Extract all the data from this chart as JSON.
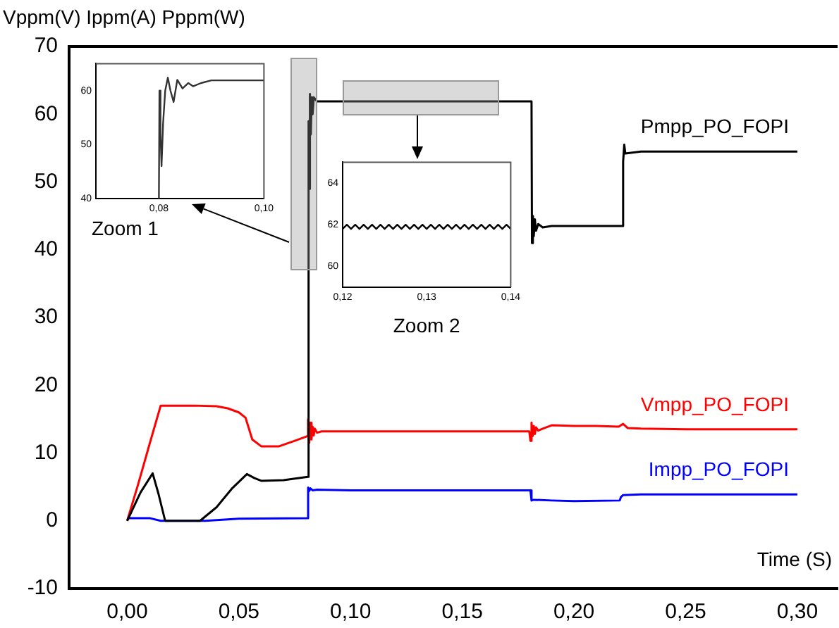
{
  "chart_data": [
    {
      "type": "line",
      "ylabel": "Vppm(V) Ippm(A) Pppm(W)",
      "xlabel": "Time (S)",
      "xlim": [
        -0.026,
        0.318
      ],
      "ylim": [
        -10,
        70
      ],
      "xticks": [
        {
          "value": 0,
          "label": "0,00"
        },
        {
          "value": 0.05,
          "label": "0,05"
        },
        {
          "value": 0.1,
          "label": "0,10"
        },
        {
          "value": 0.15,
          "label": "0,15"
        },
        {
          "value": 0.2,
          "label": "0,20"
        },
        {
          "value": 0.25,
          "label": "0,25"
        },
        {
          "value": 0.3,
          "label": "0,30"
        }
      ],
      "yticks": [
        -10,
        0,
        10,
        20,
        30,
        40,
        50,
        60,
        70
      ],
      "grid": false,
      "legend": false,
      "marker": "none",
      "line_style": "solid",
      "series": [
        {
          "name": "Pmpp_PO_FOPI",
          "color": "#000000",
          "x": [
            0,
            0.006,
            0.0114,
            0.014,
            0.017,
            0.0326,
            0.04,
            0.047,
            0.0536,
            0.057,
            0.06,
            0.07,
            0.0809,
            0.0812,
            0.0815,
            0.0818,
            0.0822,
            0.0826,
            0.083,
            0.0835,
            0.085,
            0.09,
            0.1,
            0.12,
            0.14,
            0.16,
            0.181,
            0.1812,
            0.1816,
            0.182,
            0.1825,
            0.183,
            0.184,
            0.186,
            0.19,
            0.2,
            0.21,
            0.2215,
            0.222,
            0.2225,
            0.223,
            0.23,
            0.25,
            0.27,
            0.3
          ],
          "values": [
            0,
            4.2,
            7.0,
            4,
            0,
            0,
            2,
            4.8,
            6.9,
            6.3,
            5.9,
            6.0,
            6.5,
            59,
            49,
            63,
            57,
            62.5,
            60,
            62.5,
            61.9,
            61.9,
            61.9,
            61.9,
            61.9,
            61.9,
            61.9,
            41,
            45,
            42,
            44.5,
            42.8,
            43.8,
            43.3,
            43.5,
            43.5,
            43.5,
            43.5,
            53,
            55.5,
            54.2,
            54.5,
            54.5,
            54.5,
            54.5
          ]
        },
        {
          "name": "Vmpp_PO_FOPI",
          "color": "#ff0000",
          "x": [
            0,
            0.005,
            0.01,
            0.015,
            0.02,
            0.03,
            0.04,
            0.045,
            0.05,
            0.053,
            0.056,
            0.06,
            0.068,
            0.075,
            0.0808,
            0.081,
            0.0815,
            0.082,
            0.0825,
            0.083,
            0.0835,
            0.084,
            0.085,
            0.087,
            0.09,
            0.12,
            0.15,
            0.18,
            0.1805,
            0.181,
            0.1815,
            0.182,
            0.1825,
            0.183,
            0.184,
            0.186,
            0.19,
            0.2,
            0.21,
            0.22,
            0.222,
            0.224,
            0.23,
            0.25,
            0.27,
            0.3
          ],
          "values": [
            0,
            5.5,
            11.3,
            17,
            17,
            17,
            16.9,
            16.6,
            16,
            15.2,
            12,
            11,
            11,
            11.8,
            12.5,
            15,
            11.5,
            14.5,
            12,
            13.9,
            12.6,
            13.6,
            13,
            13.2,
            13.2,
            13.2,
            13.2,
            13.2,
            11.8,
            14.5,
            12.5,
            14,
            12.8,
            13.8,
            13.3,
            13.6,
            14.1,
            14,
            14,
            13.9,
            14.3,
            13.7,
            13.6,
            13.5,
            13.5,
            13.5
          ]
        },
        {
          "name": "Impp_PO_FOPI",
          "color": "#0000ff",
          "x": [
            0,
            0.01,
            0.015,
            0.02,
            0.035,
            0.05,
            0.0808,
            0.081,
            0.0815,
            0.082,
            0.083,
            0.085,
            0.1,
            0.14,
            0.1805,
            0.181,
            0.182,
            0.19,
            0.2,
            0.2205,
            0.221,
            0.222,
            0.23,
            0.26,
            0.3
          ],
          "values": [
            0.4,
            0.4,
            0,
            0,
            0,
            0.3,
            0.4,
            4.9,
            4.4,
            4.8,
            4.5,
            4.6,
            4.5,
            4.5,
            4.5,
            3.0,
            3.1,
            3.0,
            2.9,
            3.0,
            3.5,
            3.8,
            3.9,
            3.9,
            3.9
          ]
        }
      ]
    },
    {
      "type": "line",
      "title": "Zoom 1",
      "xlim": [
        0.068,
        0.1
      ],
      "ylim": [
        40,
        65
      ],
      "xticks": [
        {
          "value": 0.08,
          "label": "0,08"
        },
        {
          "value": 0.1,
          "label": "0,10"
        }
      ],
      "yticks": [
        40,
        50,
        60
      ],
      "grid": false,
      "legend": false,
      "marker": "none",
      "line_style": "solid",
      "series": [
        {
          "color": "#333333",
          "x": [
            0.08,
            0.0801,
            0.0803,
            0.0805,
            0.0808,
            0.0812,
            0.0817,
            0.0822,
            0.0828,
            0.0835,
            0.0845,
            0.0856,
            0.0865,
            0.088,
            0.09,
            0.095,
            0.1
          ],
          "values": [
            40,
            60,
            52,
            46,
            54,
            60,
            62.4,
            60,
            57.9,
            62,
            60.4,
            61.4,
            60.8,
            61.4,
            61.9,
            61.9,
            61.9
          ]
        }
      ]
    },
    {
      "type": "line",
      "title": "Zoom 2",
      "xlim": [
        0.12,
        0.14
      ],
      "ylim": [
        59,
        65
      ],
      "xticks": [
        {
          "value": 0.12,
          "label": "0,12"
        },
        {
          "value": 0.13,
          "label": "0,13"
        },
        {
          "value": 0.14,
          "label": "0,14"
        }
      ],
      "yticks": [
        60,
        62,
        64
      ],
      "grid": false,
      "legend": false,
      "marker": "none",
      "line_style": "solid",
      "series": [
        {
          "color": "#000000",
          "x": [
            0.12,
            0.1205,
            0.121,
            0.1215,
            0.122,
            0.1225,
            0.123,
            0.1235,
            0.124,
            0.1245,
            0.125,
            0.1255,
            0.126,
            0.1265,
            0.127,
            0.1275,
            0.128,
            0.1285,
            0.129,
            0.1295,
            0.13,
            0.1305,
            0.131,
            0.1315,
            0.132,
            0.1325,
            0.133,
            0.1335,
            0.134,
            0.1345,
            0.135,
            0.1355,
            0.136,
            0.1365,
            0.137,
            0.1375,
            0.138,
            0.1385,
            0.139,
            0.1395,
            0.14
          ],
          "values": [
            61.8,
            62.0,
            61.8,
            62.0,
            61.8,
            62.0,
            61.8,
            62.0,
            61.8,
            62.0,
            61.8,
            62.0,
            61.8,
            62.0,
            61.8,
            62.0,
            61.8,
            62.0,
            61.8,
            62.0,
            61.8,
            62.0,
            61.8,
            62.0,
            61.8,
            62.0,
            61.8,
            62.0,
            61.8,
            62.0,
            61.8,
            62.0,
            61.8,
            62.0,
            61.8,
            62.0,
            61.8,
            62.0,
            61.8,
            62.0,
            61.8
          ]
        }
      ]
    }
  ]
}
